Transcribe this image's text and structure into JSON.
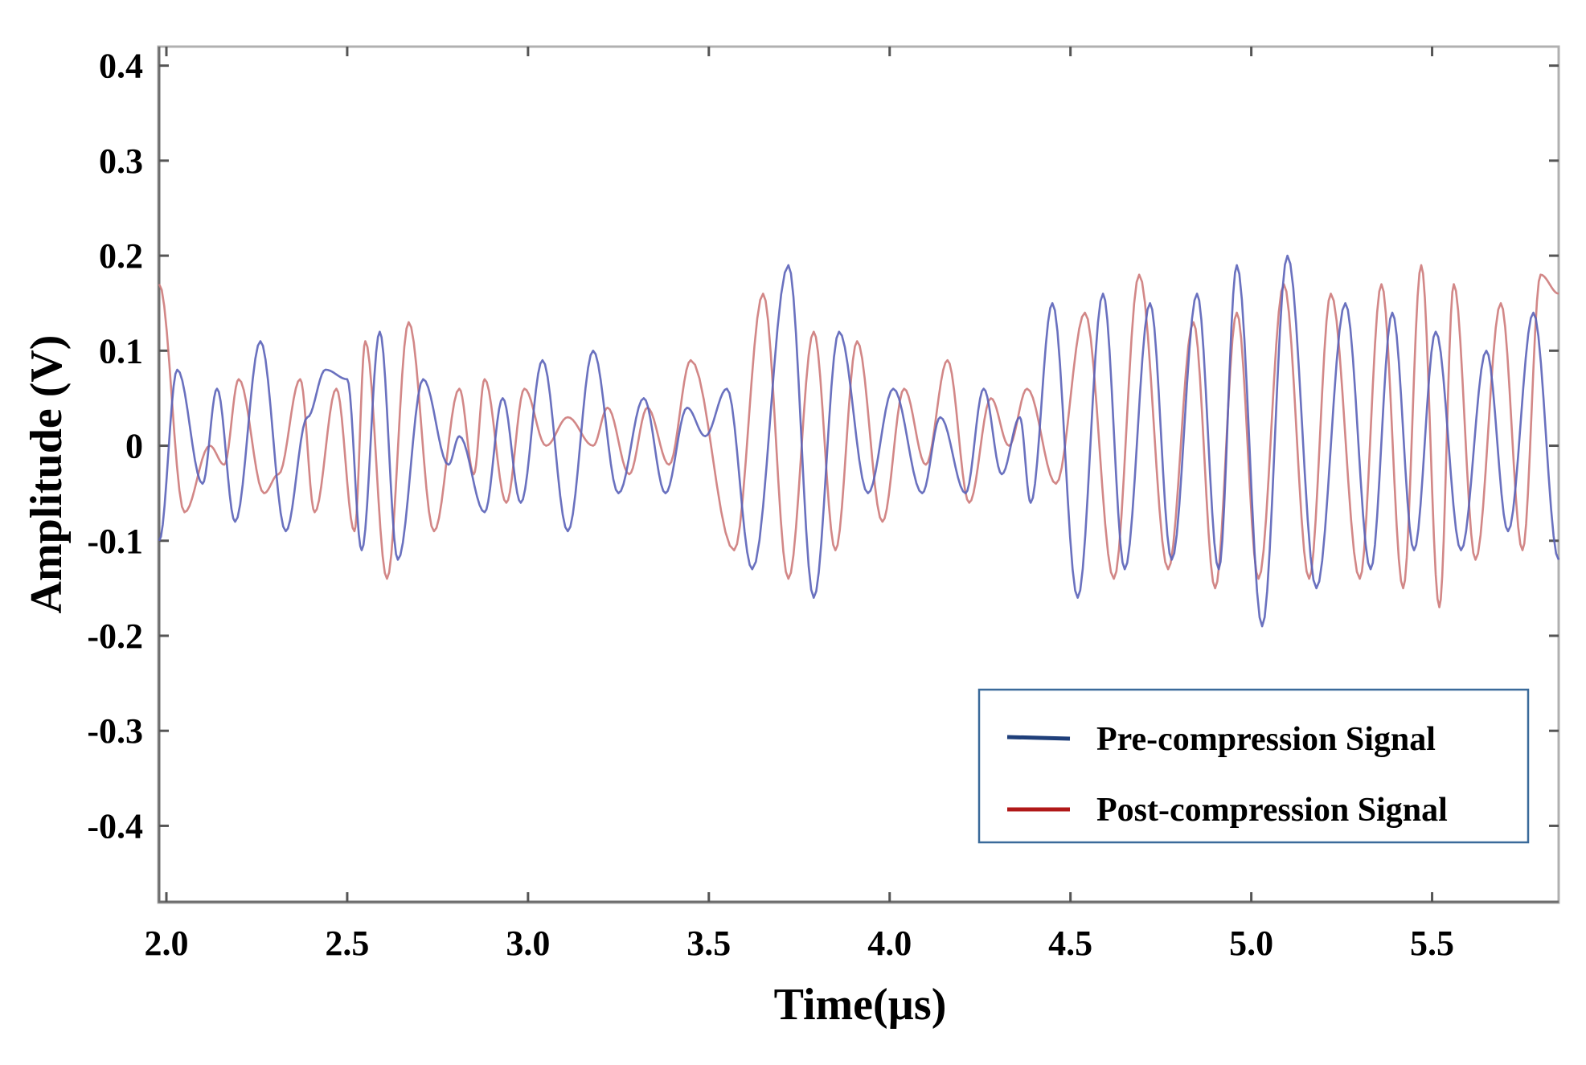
{
  "chart_data": {
    "type": "line",
    "xlabel": "Time(µs)",
    "ylabel": "Amplitude (V)",
    "xlim": [
      1.98,
      5.85
    ],
    "ylim": [
      -0.48,
      0.42
    ],
    "x_ticks": [
      2.0,
      2.5,
      3.0,
      3.5,
      4.0,
      4.5,
      5.0,
      5.5
    ],
    "x_tick_labels": [
      "2.0",
      "2.5",
      "3.0",
      "3.5",
      "4.0",
      "4.5",
      "5.0",
      "5.5"
    ],
    "y_ticks": [
      0.4,
      0.3,
      0.2,
      0.1,
      0,
      -0.1,
      -0.2,
      -0.3,
      -0.4
    ],
    "y_tick_labels": [
      "0.4",
      "0.3",
      "0.2",
      "0.1",
      "0",
      "-0.1",
      "-0.2",
      "-0.3",
      "-0.4"
    ],
    "grid": false,
    "legend_position": "bottom-right",
    "series": [
      {
        "name": "Pre-compression Signal",
        "color": "#5a62b8",
        "legend_color": "#1f3f7a",
        "peaks": [
          [
            1.98,
            -0.1
          ],
          [
            2.03,
            0.08
          ],
          [
            2.1,
            -0.04
          ],
          [
            2.14,
            0.06
          ],
          [
            2.19,
            -0.08
          ],
          [
            2.26,
            0.11
          ],
          [
            2.33,
            -0.09
          ],
          [
            2.39,
            0.03
          ],
          [
            2.44,
            0.08
          ],
          [
            2.5,
            0.07
          ],
          [
            2.54,
            -0.11
          ],
          [
            2.59,
            0.12
          ],
          [
            2.64,
            -0.12
          ],
          [
            2.71,
            0.07
          ],
          [
            2.78,
            -0.02
          ],
          [
            2.81,
            0.01
          ],
          [
            2.88,
            -0.07
          ],
          [
            2.93,
            0.05
          ],
          [
            2.98,
            -0.06
          ],
          [
            3.04,
            0.09
          ],
          [
            3.11,
            -0.09
          ],
          [
            3.18,
            0.1
          ],
          [
            3.25,
            -0.05
          ],
          [
            3.32,
            0.05
          ],
          [
            3.38,
            -0.05
          ],
          [
            3.44,
            0.04
          ],
          [
            3.49,
            0.01
          ],
          [
            3.55,
            0.06
          ],
          [
            3.62,
            -0.13
          ],
          [
            3.72,
            0.19
          ],
          [
            3.79,
            -0.16
          ],
          [
            3.86,
            0.12
          ],
          [
            3.94,
            -0.05
          ],
          [
            4.01,
            0.06
          ],
          [
            4.09,
            -0.05
          ],
          [
            4.14,
            0.03
          ],
          [
            4.21,
            -0.05
          ],
          [
            4.26,
            0.06
          ],
          [
            4.31,
            -0.03
          ],
          [
            4.36,
            0.03
          ],
          [
            4.39,
            -0.06
          ],
          [
            4.45,
            0.15
          ],
          [
            4.52,
            -0.16
          ],
          [
            4.59,
            0.16
          ],
          [
            4.65,
            -0.13
          ],
          [
            4.72,
            0.15
          ],
          [
            4.78,
            -0.12
          ],
          [
            4.85,
            0.16
          ],
          [
            4.91,
            -0.13
          ],
          [
            4.96,
            0.19
          ],
          [
            5.03,
            -0.19
          ],
          [
            5.1,
            0.2
          ],
          [
            5.18,
            -0.15
          ],
          [
            5.26,
            0.15
          ],
          [
            5.33,
            -0.13
          ],
          [
            5.39,
            0.14
          ],
          [
            5.45,
            -0.11
          ],
          [
            5.51,
            0.12
          ],
          [
            5.58,
            -0.11
          ],
          [
            5.65,
            0.1
          ],
          [
            5.71,
            -0.09
          ],
          [
            5.78,
            0.14
          ],
          [
            5.85,
            -0.12
          ]
        ]
      },
      {
        "name": "Post-compression Signal",
        "color": "#cd7a7a",
        "legend_color": "#b01818",
        "peaks": [
          [
            1.98,
            0.17
          ],
          [
            2.05,
            -0.07
          ],
          [
            2.12,
            0.0
          ],
          [
            2.16,
            -0.02
          ],
          [
            2.2,
            0.07
          ],
          [
            2.27,
            -0.05
          ],
          [
            2.31,
            -0.03
          ],
          [
            2.37,
            0.07
          ],
          [
            2.41,
            -0.07
          ],
          [
            2.47,
            0.06
          ],
          [
            2.52,
            -0.09
          ],
          [
            2.55,
            0.11
          ],
          [
            2.61,
            -0.14
          ],
          [
            2.67,
            0.13
          ],
          [
            2.74,
            -0.09
          ],
          [
            2.81,
            0.06
          ],
          [
            2.85,
            -0.03
          ],
          [
            2.88,
            0.07
          ],
          [
            2.94,
            -0.06
          ],
          [
            2.99,
            0.06
          ],
          [
            3.05,
            0.0
          ],
          [
            3.11,
            0.03
          ],
          [
            3.18,
            0.0
          ],
          [
            3.22,
            0.04
          ],
          [
            3.28,
            -0.03
          ],
          [
            3.33,
            0.04
          ],
          [
            3.39,
            -0.02
          ],
          [
            3.45,
            0.09
          ],
          [
            3.57,
            -0.11
          ],
          [
            3.65,
            0.16
          ],
          [
            3.72,
            -0.14
          ],
          [
            3.79,
            0.12
          ],
          [
            3.85,
            -0.11
          ],
          [
            3.91,
            0.11
          ],
          [
            3.98,
            -0.08
          ],
          [
            4.04,
            0.06
          ],
          [
            4.1,
            -0.02
          ],
          [
            4.16,
            0.09
          ],
          [
            4.22,
            -0.06
          ],
          [
            4.28,
            0.05
          ],
          [
            4.33,
            0.0
          ],
          [
            4.38,
            0.06
          ],
          [
            4.46,
            -0.04
          ],
          [
            4.54,
            0.14
          ],
          [
            4.62,
            -0.14
          ],
          [
            4.69,
            0.18
          ],
          [
            4.77,
            -0.13
          ],
          [
            4.84,
            0.13
          ],
          [
            4.9,
            -0.15
          ],
          [
            4.96,
            0.14
          ],
          [
            5.02,
            -0.14
          ],
          [
            5.09,
            0.17
          ],
          [
            5.16,
            -0.14
          ],
          [
            5.22,
            0.16
          ],
          [
            5.3,
            -0.14
          ],
          [
            5.36,
            0.17
          ],
          [
            5.42,
            -0.15
          ],
          [
            5.47,
            0.19
          ],
          [
            5.52,
            -0.17
          ],
          [
            5.56,
            0.17
          ],
          [
            5.62,
            -0.12
          ],
          [
            5.69,
            0.15
          ],
          [
            5.75,
            -0.11
          ],
          [
            5.8,
            0.18
          ],
          [
            5.85,
            0.16
          ]
        ]
      }
    ]
  }
}
